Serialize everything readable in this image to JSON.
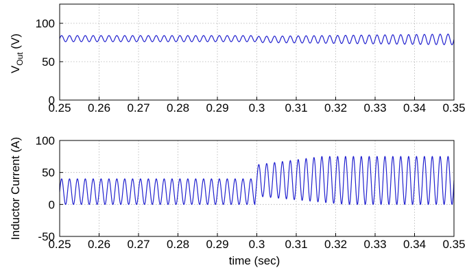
{
  "chart_data": [
    {
      "type": "line",
      "ylabel_main": "V",
      "ylabel_sub": "Out",
      "ylabel_unit": " (V)",
      "xlim": [
        0.25,
        0.35
      ],
      "ylim": [
        0,
        125
      ],
      "yticks": [
        0,
        50,
        100
      ],
      "xticks": [
        0.25,
        0.26,
        0.27,
        0.28,
        0.29,
        0.3,
        0.31,
        0.32,
        0.33,
        0.34,
        0.35
      ],
      "grid": true,
      "color": "#1f1fcf",
      "ripple_frequency_hz": 500,
      "segments": [
        {
          "x_start": 0.25,
          "x_end": 0.3,
          "mean": 80,
          "amplitude_start": 4,
          "amplitude_end": 4
        },
        {
          "x_start": 0.3,
          "x_end": 0.35,
          "mean": 79,
          "amplitude_start": 4,
          "amplitude_end": 7
        }
      ]
    },
    {
      "type": "line",
      "ylabel": "Inductor Current (A)",
      "xlabel": "time (sec)",
      "xlim": [
        0.25,
        0.35
      ],
      "ylim": [
        -50,
        100
      ],
      "yticks": [
        -50,
        0,
        50,
        100
      ],
      "xticks": [
        0.25,
        0.26,
        0.27,
        0.28,
        0.29,
        0.3,
        0.31,
        0.32,
        0.33,
        0.34,
        0.35
      ],
      "grid": true,
      "color": "#1f1fcf",
      "ripple_frequency_hz": 500,
      "segments": [
        {
          "x_start": 0.25,
          "x_end": 0.2995,
          "min": 0,
          "max_start": 40,
          "max_end": 40
        },
        {
          "x_start": 0.3,
          "x_end": 0.35,
          "min_start": 13,
          "min_end": 0,
          "max_start": 62,
          "max_end": 75
        }
      ]
    }
  ]
}
